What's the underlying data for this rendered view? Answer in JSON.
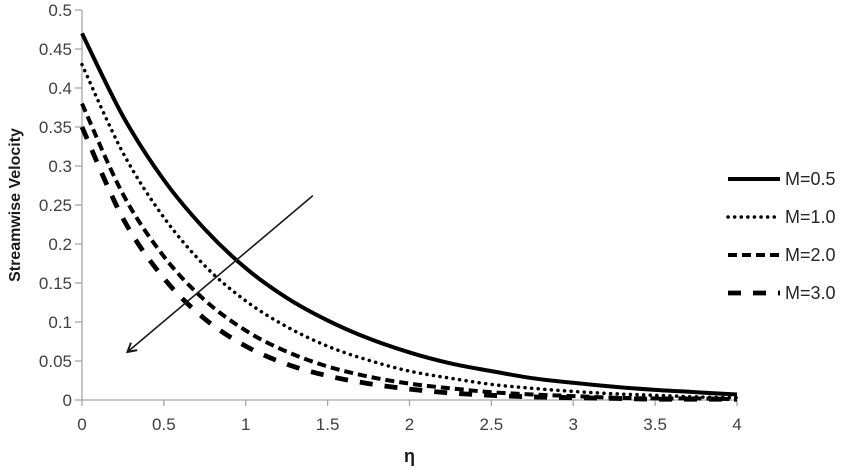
{
  "chart_data": {
    "type": "line",
    "title": "",
    "xlabel": "η",
    "ylabel": "Streamwise Velocity",
    "xlim": [
      0,
      4
    ],
    "ylim": [
      0,
      0.5
    ],
    "grid": false,
    "legend_position": "right",
    "x_tick_values": [
      0,
      0.5,
      1,
      1.5,
      2,
      2.5,
      3,
      3.5,
      4
    ],
    "x_tick_labels": [
      "0",
      "0.5",
      "1",
      "1.5",
      "2",
      "2.5",
      "3",
      "3.5",
      "4"
    ],
    "y_tick_values": [
      0,
      0.05,
      0.1,
      0.15,
      0.2,
      0.25,
      0.3,
      0.35,
      0.4,
      0.45,
      0.5
    ],
    "y_tick_labels": [
      "0",
      "0.05",
      "0.1",
      "0.15",
      "0.2",
      "0.25",
      "0.3",
      "0.35",
      "0.4",
      "0.45",
      "0.5"
    ],
    "x": [
      0,
      0.25,
      0.5,
      0.75,
      1,
      1.25,
      1.5,
      1.75,
      2,
      2.25,
      2.5,
      2.75,
      3,
      3.25,
      3.5,
      3.75,
      4
    ],
    "series": [
      {
        "name": "M=0.5",
        "style": "solid",
        "values": [
          0.47,
          0.364,
          0.282,
          0.219,
          0.169,
          0.131,
          0.102,
          0.079,
          0.061,
          0.047,
          0.037,
          0.028,
          0.022,
          0.017,
          0.013,
          0.01,
          0.007
        ]
      },
      {
        "name": "M=1.0",
        "style": "dotted",
        "values": [
          0.43,
          0.317,
          0.234,
          0.172,
          0.127,
          0.094,
          0.069,
          0.051,
          0.037,
          0.028,
          0.02,
          0.015,
          0.011,
          0.008,
          0.006,
          0.004,
          0.003
        ]
      },
      {
        "name": "M=2.0",
        "style": "dashed",
        "values": [
          0.38,
          0.264,
          0.184,
          0.128,
          0.089,
          0.062,
          0.043,
          0.03,
          0.021,
          0.015,
          0.01,
          0.007,
          0.005,
          0.003,
          0.002,
          0.002,
          0.001
        ]
      },
      {
        "name": "M=3.0",
        "style": "long-dash",
        "values": [
          0.35,
          0.233,
          0.156,
          0.104,
          0.069,
          0.046,
          0.031,
          0.021,
          0.014,
          0.009,
          0.006,
          0.004,
          0.003,
          0.002,
          0.001,
          0.001,
          0.001
        ]
      }
    ],
    "annotations": [
      {
        "type": "arrow",
        "from": {
          "x": 1.41,
          "y": 0.262
        },
        "to": {
          "x": 0.28,
          "y": 0.062
        }
      }
    ]
  },
  "colors": {
    "curve": "#000000",
    "axis": "#a6a6a6",
    "tick_text": "#404040",
    "legend_text": "#262626",
    "arrow": "#1a1a1a"
  }
}
